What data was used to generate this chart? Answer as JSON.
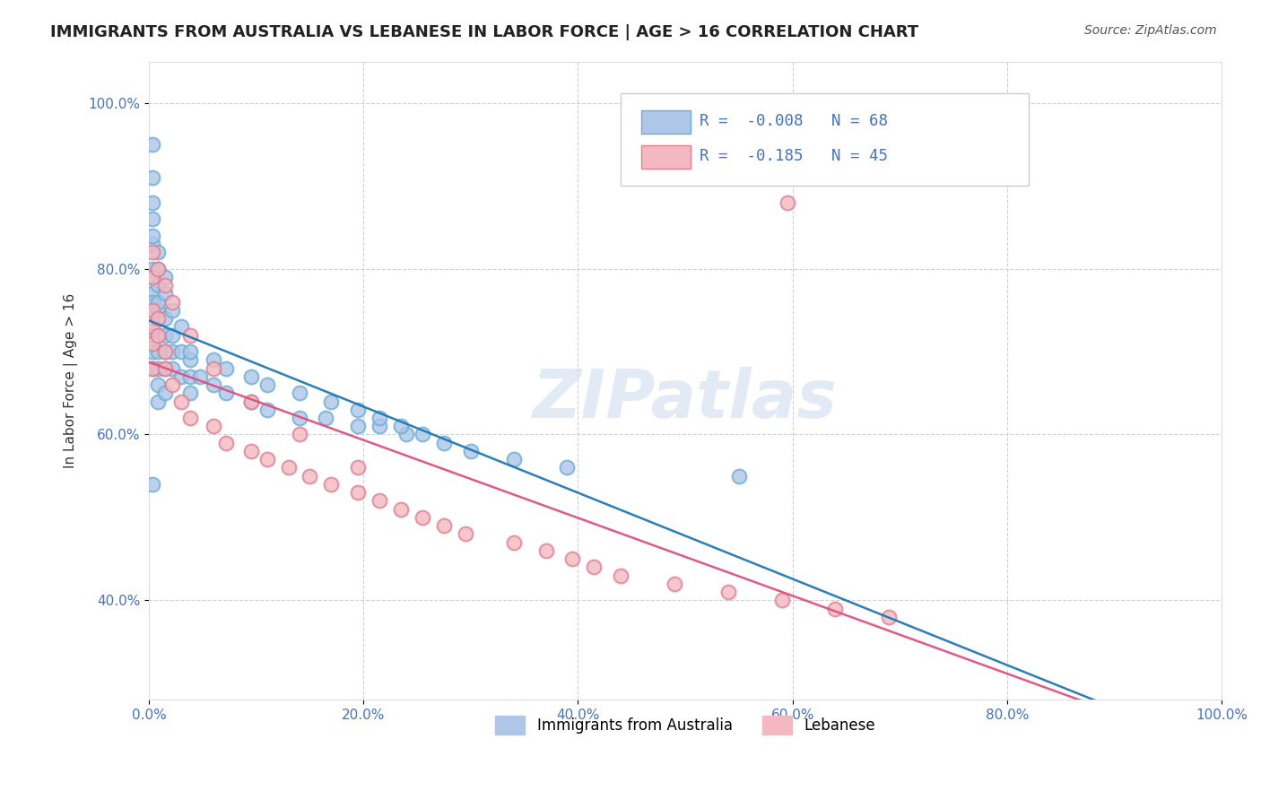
{
  "title": "IMMIGRANTS FROM AUSTRALIA VS LEBANESE IN LABOR FORCE | AGE > 16 CORRELATION CHART",
  "source_text": "Source: ZipAtlas.com",
  "ylabel": "In Labor Force | Age > 16",
  "xlim": [
    0.0,
    1.0
  ],
  "ylim": [
    0.28,
    1.05
  ],
  "x_ticks": [
    0.0,
    0.2,
    0.4,
    0.6,
    0.8,
    1.0
  ],
  "x_tick_labels": [
    "0.0%",
    "20.0%",
    "40.0%",
    "60.0%",
    "80.0%",
    "100.0%"
  ],
  "y_ticks": [
    0.4,
    0.6,
    0.8,
    1.0
  ],
  "y_tick_labels": [
    "40.0%",
    "60.0%",
    "80.0%",
    "100.0%"
  ],
  "bg_color": "#ffffff",
  "grid_color": "#cccccc",
  "australia_fill": "#aec6e8",
  "australia_edge": "#6baed6",
  "lebanese_fill": "#f4b8c1",
  "lebanese_edge": "#e08090",
  "australia_trendline_color": "#1f78b4",
  "lebanese_trendline_color": "#e05080",
  "australia_R": -0.008,
  "australia_N": 68,
  "lebanese_R": -0.185,
  "lebanese_N": 45,
  "tick_color": "#4472c4",
  "title_color": "#222222",
  "source_color": "#555555",
  "watermark_color": "#d0ddf0",
  "legend_box_edge": "#cccccc",
  "legend_text_color": "#4472c4",
  "aus_scatter_x": [
    0.003,
    0.003,
    0.003,
    0.003,
    0.003,
    0.003,
    0.003,
    0.003,
    0.003,
    0.003,
    0.008,
    0.008,
    0.008,
    0.008,
    0.008,
    0.008,
    0.008,
    0.015,
    0.015,
    0.015,
    0.015,
    0.015,
    0.022,
    0.022,
    0.022,
    0.03,
    0.03,
    0.038,
    0.038,
    0.038,
    0.048,
    0.06,
    0.072,
    0.095,
    0.11,
    0.14,
    0.165,
    0.195,
    0.215,
    0.24,
    0.003,
    0.003,
    0.003,
    0.003,
    0.003,
    0.008,
    0.008,
    0.008,
    0.015,
    0.015,
    0.022,
    0.03,
    0.038,
    0.06,
    0.072,
    0.095,
    0.11,
    0.14,
    0.17,
    0.195,
    0.215,
    0.235,
    0.255,
    0.275,
    0.3,
    0.34,
    0.39,
    0.55
  ],
  "aus_scatter_y": [
    0.88,
    0.83,
    0.8,
    0.79,
    0.77,
    0.76,
    0.74,
    0.72,
    0.7,
    0.68,
    0.78,
    0.75,
    0.72,
    0.7,
    0.68,
    0.66,
    0.64,
    0.74,
    0.72,
    0.7,
    0.68,
    0.65,
    0.72,
    0.7,
    0.68,
    0.7,
    0.67,
    0.69,
    0.67,
    0.65,
    0.67,
    0.66,
    0.65,
    0.64,
    0.63,
    0.62,
    0.62,
    0.61,
    0.61,
    0.6,
    0.95,
    0.91,
    0.86,
    0.84,
    0.54,
    0.82,
    0.8,
    0.76,
    0.79,
    0.77,
    0.75,
    0.73,
    0.7,
    0.69,
    0.68,
    0.67,
    0.66,
    0.65,
    0.64,
    0.63,
    0.62,
    0.61,
    0.6,
    0.59,
    0.58,
    0.57,
    0.56,
    0.55
  ],
  "leb_scatter_x": [
    0.003,
    0.003,
    0.003,
    0.003,
    0.003,
    0.008,
    0.008,
    0.015,
    0.015,
    0.022,
    0.03,
    0.038,
    0.06,
    0.072,
    0.095,
    0.11,
    0.13,
    0.15,
    0.17,
    0.195,
    0.215,
    0.235,
    0.255,
    0.275,
    0.295,
    0.34,
    0.37,
    0.395,
    0.415,
    0.44,
    0.49,
    0.54,
    0.59,
    0.64,
    0.69,
    0.003,
    0.008,
    0.015,
    0.022,
    0.038,
    0.06,
    0.095,
    0.14,
    0.195,
    0.595
  ],
  "leb_scatter_y": [
    0.79,
    0.75,
    0.73,
    0.71,
    0.68,
    0.74,
    0.72,
    0.7,
    0.68,
    0.66,
    0.64,
    0.62,
    0.61,
    0.59,
    0.58,
    0.57,
    0.56,
    0.55,
    0.54,
    0.53,
    0.52,
    0.51,
    0.5,
    0.49,
    0.48,
    0.47,
    0.46,
    0.45,
    0.44,
    0.43,
    0.42,
    0.41,
    0.4,
    0.39,
    0.38,
    0.82,
    0.8,
    0.78,
    0.76,
    0.72,
    0.68,
    0.64,
    0.6,
    0.56,
    0.88
  ]
}
